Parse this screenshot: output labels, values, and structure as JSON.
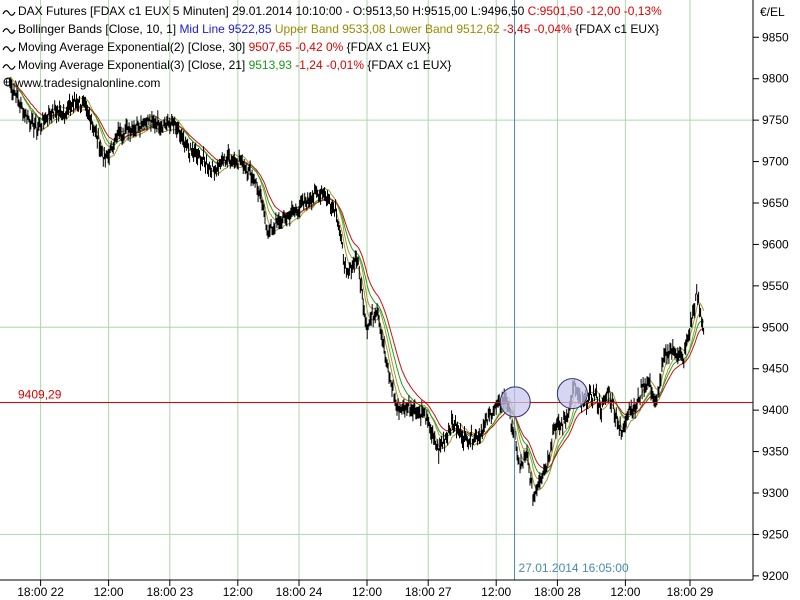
{
  "chart_data": {
    "type": "line",
    "instrument": "DAX Futures",
    "currency_label": "€/EL",
    "legend": [
      {
        "id": "ohlc",
        "parts": [
          {
            "text": "DAX Futures [FDAX c1 EUX  5 Minuten] 29.01.2014 10:10:00 - O:9513,50 H:9515,00 L:9496,50 ",
            "color": "#000000"
          },
          {
            "text": "C:9501,50 -12,00 -0,13%",
            "color": "#e00000"
          }
        ]
      },
      {
        "id": "bollinger",
        "parts": [
          {
            "text": "Bollinger Bands [Close, 10, 1] ",
            "color": "#000000"
          },
          {
            "text": "Mid Line 9522,85 ",
            "color": "#1a1adc"
          },
          {
            "text": "Upper Band 9533,08 ",
            "color": "#9a8a00"
          },
          {
            "text": "Lower Band 9512,62 ",
            "color": "#9a8a00"
          },
          {
            "text": "-3,45 -0,04% ",
            "color": "#e00000"
          },
          {
            "text": "{FDAX c1 EUX}",
            "color": "#000000"
          }
        ]
      },
      {
        "id": "ema30",
        "parts": [
          {
            "text": "Moving Average Exponential(2) [Close, 30] ",
            "color": "#000000"
          },
          {
            "text": "9507,65 -0,42 0% ",
            "color": "#e00000"
          },
          {
            "text": "{FDAX c1 EUX}",
            "color": "#000000"
          }
        ]
      },
      {
        "id": "ema21",
        "parts": [
          {
            "text": "Moving Average Exponential(3) [Close, 21] ",
            "color": "#000000"
          },
          {
            "text": "9513,93 ",
            "color": "#1a9a1a"
          },
          {
            "text": "-1,24 -0,01% ",
            "color": "#e00000"
          },
          {
            "text": "{FDAX c1 EUX}",
            "color": "#000000"
          }
        ]
      }
    ],
    "watermark": "www.tradesignalonline.com",
    "y_axis": {
      "min": 9195,
      "max": 9895,
      "ticks": [
        9200,
        9250,
        9300,
        9350,
        9400,
        9450,
        9500,
        9550,
        9600,
        9650,
        9700,
        9750,
        9800,
        9850
      ]
    },
    "y_grid_lines": [
      9250,
      9500,
      9750
    ],
    "x_axis": {
      "ticks": [
        {
          "label": "18:00 22",
          "t": 0.045
        },
        {
          "label": "12:00",
          "t": 0.145
        },
        {
          "label": "18:00 23",
          "t": 0.235
        },
        {
          "label": "12:00",
          "t": 0.335
        },
        {
          "label": "18:00 24",
          "t": 0.425
        },
        {
          "label": "12:00",
          "t": 0.525
        },
        {
          "label": "18:00 27",
          "t": 0.615
        },
        {
          "label": "12:00",
          "t": 0.715
        },
        {
          "label": "18:00 28",
          "t": 0.805
        },
        {
          "label": "12:00",
          "t": 0.905
        },
        {
          "label": "18:00 29",
          "t": 1.0
        }
      ]
    },
    "horizontal_line": {
      "value": 9409.29,
      "label": "9409,29",
      "color": "#e00000"
    },
    "crosshair": {
      "t": 0.742,
      "label": "27.01.2014 16:05:00"
    },
    "highlight_circles": [
      {
        "t": 0.743,
        "value": 9410
      },
      {
        "t": 0.827,
        "value": 9420
      }
    ],
    "price_anchors": [
      [
        0.0,
        9795
      ],
      [
        0.02,
        9760
      ],
      [
        0.04,
        9740
      ],
      [
        0.06,
        9760
      ],
      [
        0.08,
        9760
      ],
      [
        0.1,
        9775
      ],
      [
        0.12,
        9750
      ],
      [
        0.14,
        9700
      ],
      [
        0.16,
        9735
      ],
      [
        0.18,
        9740
      ],
      [
        0.2,
        9750
      ],
      [
        0.22,
        9745
      ],
      [
        0.24,
        9745
      ],
      [
        0.26,
        9715
      ],
      [
        0.28,
        9705
      ],
      [
        0.3,
        9690
      ],
      [
        0.32,
        9705
      ],
      [
        0.34,
        9700
      ],
      [
        0.36,
        9680
      ],
      [
        0.38,
        9615
      ],
      [
        0.4,
        9630
      ],
      [
        0.42,
        9640
      ],
      [
        0.44,
        9655
      ],
      [
        0.46,
        9665
      ],
      [
        0.48,
        9640
      ],
      [
        0.495,
        9560
      ],
      [
        0.51,
        9585
      ],
      [
        0.525,
        9500
      ],
      [
        0.54,
        9525
      ],
      [
        0.555,
        9450
      ],
      [
        0.57,
        9400
      ],
      [
        0.59,
        9405
      ],
      [
        0.61,
        9395
      ],
      [
        0.63,
        9350
      ],
      [
        0.65,
        9385
      ],
      [
        0.67,
        9365
      ],
      [
        0.69,
        9370
      ],
      [
        0.71,
        9400
      ],
      [
        0.73,
        9415
      ],
      [
        0.74,
        9375
      ],
      [
        0.75,
        9330
      ],
      [
        0.76,
        9345
      ],
      [
        0.77,
        9295
      ],
      [
        0.78,
        9320
      ],
      [
        0.79,
        9335
      ],
      [
        0.8,
        9380
      ],
      [
        0.81,
        9380
      ],
      [
        0.82,
        9395
      ],
      [
        0.83,
        9430
      ],
      [
        0.84,
        9405
      ],
      [
        0.86,
        9420
      ],
      [
        0.87,
        9400
      ],
      [
        0.88,
        9425
      ],
      [
        0.89,
        9395
      ],
      [
        0.9,
        9370
      ],
      [
        0.91,
        9405
      ],
      [
        0.92,
        9400
      ],
      [
        0.93,
        9430
      ],
      [
        0.94,
        9435
      ],
      [
        0.95,
        9405
      ],
      [
        0.96,
        9455
      ],
      [
        0.97,
        9475
      ],
      [
        0.98,
        9470
      ],
      [
        0.99,
        9460
      ],
      [
        1.0,
        9500
      ],
      [
        1.01,
        9540
      ],
      [
        1.02,
        9500
      ]
    ],
    "colors": {
      "price": "#000000",
      "upper_band": "#a09a30",
      "lower_band": "#a09a30",
      "ema30": "#d01010",
      "ema21": "#20a020",
      "grid": "#aed6ae",
      "crosshair": "#4a8ab0",
      "circle_fill": "#c8c8ee",
      "circle_stroke": "#30306a"
    }
  }
}
